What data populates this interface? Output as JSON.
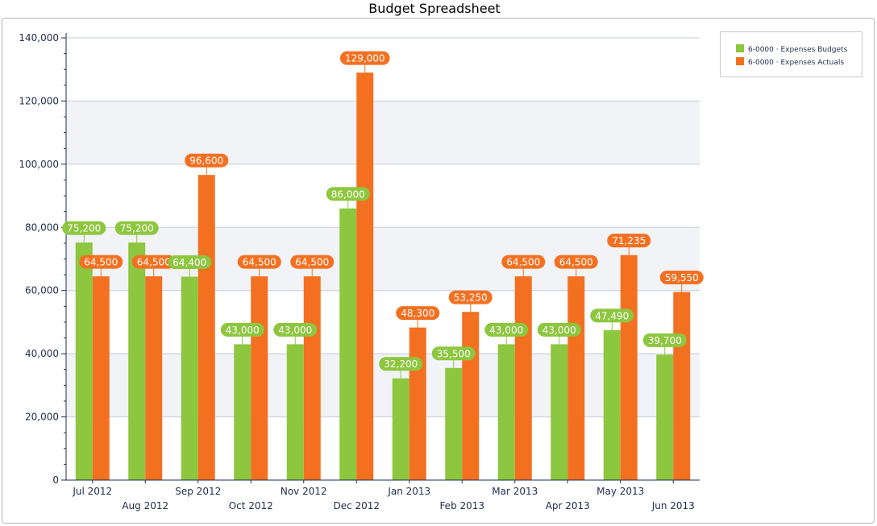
{
  "chart_data": {
    "type": "bar",
    "title": "Budget Spreadsheet",
    "categories": [
      "Jul 2012",
      "Aug 2012",
      "Sep 2012",
      "Oct 2012",
      "Nov 2012",
      "Dec 2012",
      "Jan 2013",
      "Feb 2013",
      "Mar 2013",
      "Apr 2013",
      "May 2013",
      "Jun 2013"
    ],
    "series": [
      {
        "name": "6-0000 · Expenses Budgets",
        "color": "#8dc63f",
        "values": [
          75200,
          75200,
          64400,
          43000,
          43000,
          86000,
          32200,
          35500,
          43000,
          43000,
          47490,
          39700
        ]
      },
      {
        "name": "6-0000 · Expenses Actuals",
        "color": "#f37021",
        "values": [
          64500,
          64500,
          96600,
          64500,
          64500,
          129000,
          48300,
          53250,
          64500,
          64500,
          71235,
          59550
        ]
      }
    ],
    "data_labels": [
      [
        "75,200",
        "75,200",
        "64,400",
        "43,000",
        "43,000",
        "86,000",
        "32,200",
        "35,500",
        "43,000",
        "43,000",
        "47,490",
        "39,700"
      ],
      [
        "64,500",
        "64,500",
        "96,600",
        "64,500",
        "64,500",
        "129,000",
        "48,300",
        "53,250",
        "64,500",
        "64,500",
        "71,235",
        "59,550"
      ]
    ],
    "ylim": [
      0,
      140000
    ],
    "yticks": [
      0,
      20000,
      40000,
      60000,
      80000,
      100000,
      120000,
      140000
    ],
    "ytick_labels": [
      "0",
      "20,000",
      "40,000",
      "60,000",
      "80,000",
      "100,000",
      "120,000",
      "140,000"
    ],
    "xlabel": "",
    "ylabel": "",
    "grid": true,
    "legend": "top-right"
  }
}
